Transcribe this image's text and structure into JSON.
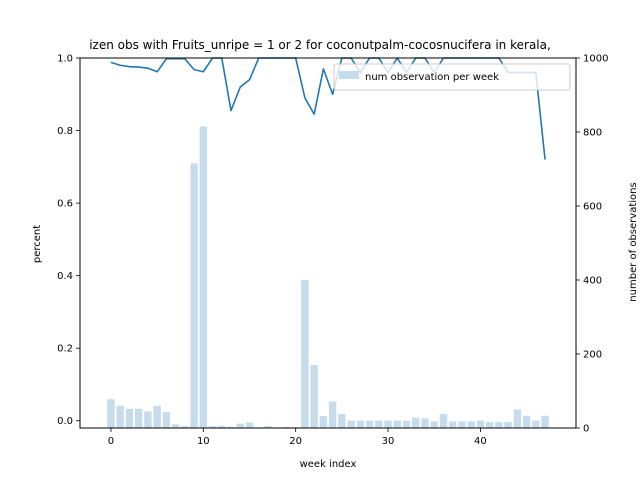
{
  "chart_data": {
    "type": "bar+line",
    "title": "izen obs with Fruits_unripe = 1 or 2 for coconutpalm-cocosnucifera in kerala,",
    "xlabel": "week index",
    "ylabel_left": "percent",
    "ylabel_right": "number of observations",
    "xlim": [
      -3.35,
      50.35
    ],
    "ylim_left": [
      -0.02,
      1.0
    ],
    "ylim_right": [
      0,
      1000
    ],
    "xticks": [
      0,
      10,
      20,
      30,
      40
    ],
    "yticks_left": [
      0.0,
      0.2,
      0.4,
      0.6,
      0.8,
      1.0
    ],
    "yticks_right": [
      0,
      200,
      400,
      600,
      800,
      1000
    ],
    "yticks_left_labels": [
      "0.0",
      "0.2",
      "0.4",
      "0.6",
      "0.8",
      "1.0"
    ],
    "yticks_right_labels": [
      "0",
      "200",
      "400",
      "600",
      "800",
      "1000"
    ],
    "legend": {
      "label": "num observation per week",
      "placement": "top-right"
    },
    "colors": {
      "line": "#1f77b4",
      "bar": "#c6dbeb"
    },
    "weeks": [
      0,
      1,
      2,
      3,
      4,
      5,
      6,
      7,
      8,
      9,
      10,
      11,
      12,
      13,
      14,
      15,
      16,
      17,
      18,
      19,
      20,
      21,
      22,
      23,
      24,
      25,
      26,
      27,
      28,
      29,
      30,
      31,
      32,
      33,
      34,
      35,
      36,
      37,
      38,
      39,
      40,
      41,
      42,
      43,
      44,
      45,
      46,
      47
    ],
    "bar_values": [
      78,
      60,
      52,
      52,
      45,
      60,
      43,
      10,
      5,
      715,
      815,
      5,
      6,
      3,
      12,
      15,
      2,
      5,
      2,
      3,
      2,
      400,
      170,
      32,
      72,
      38,
      20,
      20,
      20,
      20,
      20,
      20,
      20,
      28,
      26,
      18,
      38,
      18,
      18,
      18,
      20,
      16,
      16,
      16,
      50,
      33,
      20,
      33
    ],
    "line_values": [
      0.988,
      0.98,
      0.976,
      0.975,
      0.972,
      0.962,
      0.998,
      0.998,
      0.998,
      0.968,
      0.962,
      1.0,
      1.0,
      0.855,
      0.92,
      0.94,
      1.0,
      1.0,
      1.0,
      1.0,
      1.0,
      0.89,
      0.845,
      0.97,
      0.9,
      1.0,
      1.0,
      0.96,
      1.0,
      1.0,
      0.96,
      1.0,
      0.96,
      1.0,
      1.0,
      0.96,
      1.0,
      1.0,
      1.0,
      1.0,
      1.0,
      1.0,
      1.0,
      0.96,
      0.96,
      0.96,
      0.96,
      0.72
    ]
  }
}
